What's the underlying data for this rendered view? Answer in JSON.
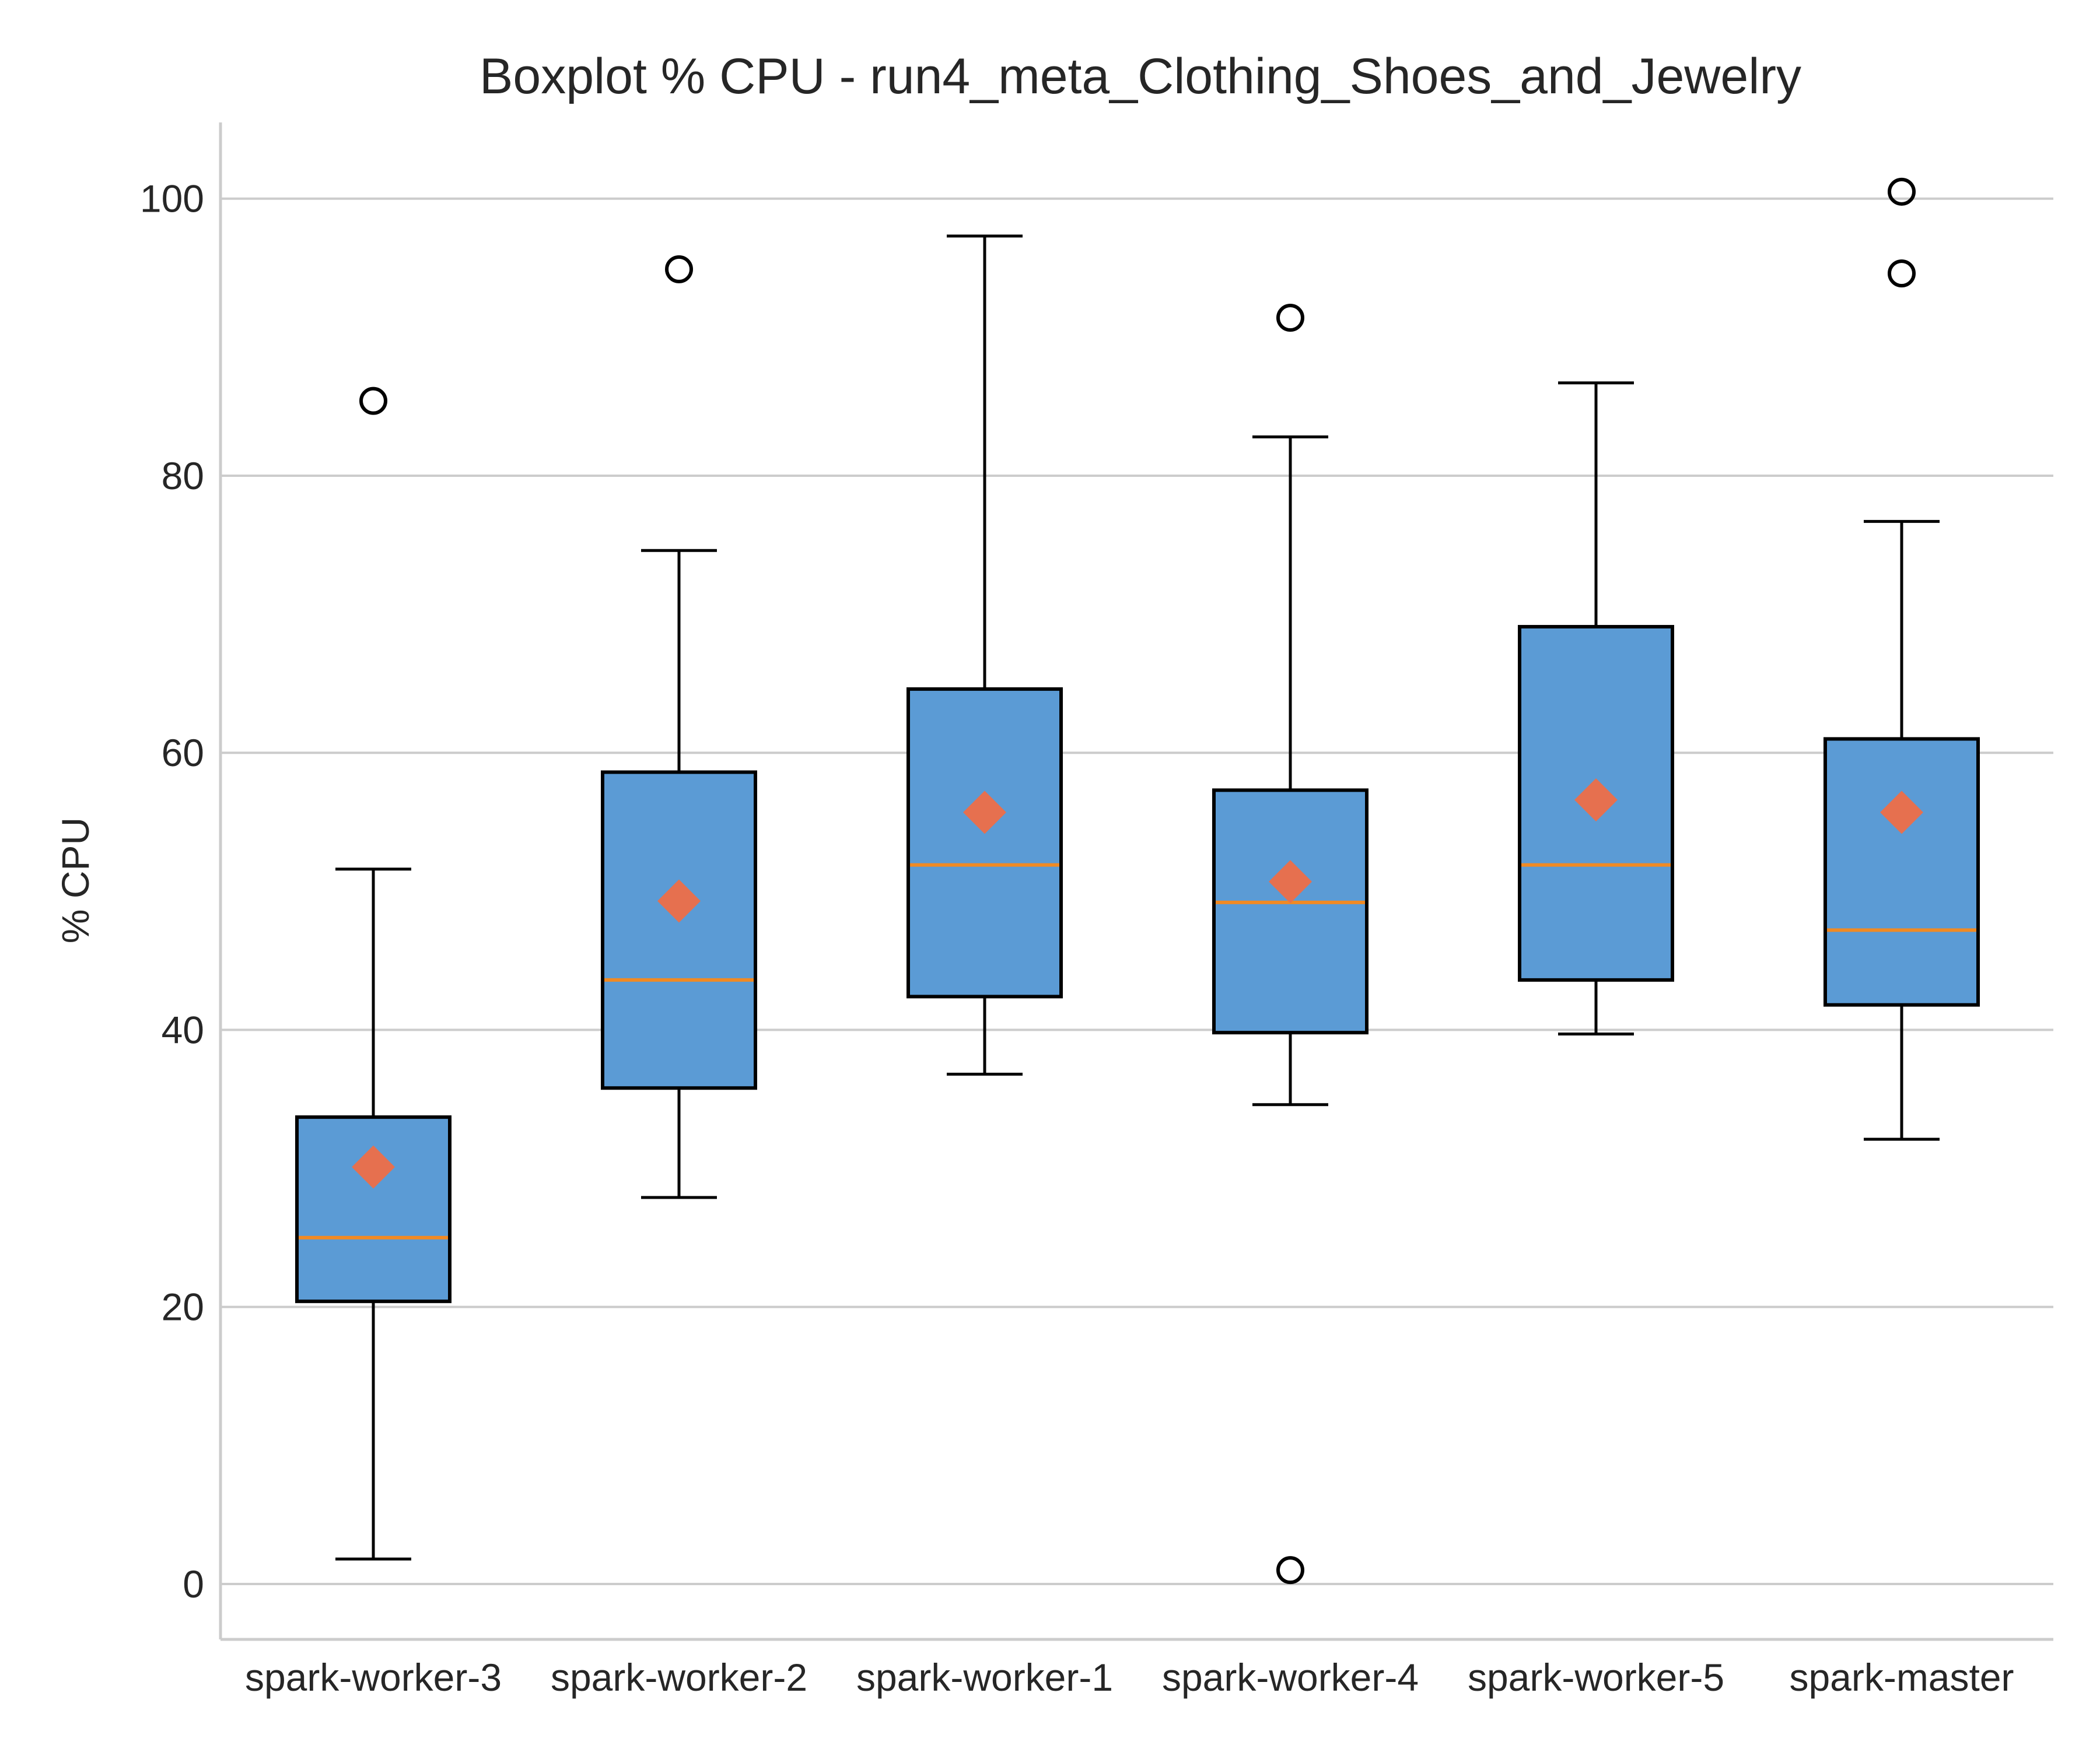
{
  "chart_data": {
    "type": "boxplot",
    "title": "Boxplot % CPU - run4_meta_Clothing_Shoes_and_Jewelry",
    "xlabel": "",
    "ylabel": "% CPU",
    "ylim": [
      -4,
      105.5
    ],
    "yticks": [
      0,
      20,
      40,
      60,
      80,
      100
    ],
    "grid": "horizontal",
    "categories": [
      "spark-worker-3",
      "spark-worker-2",
      "spark-worker-1",
      "spark-worker-4",
      "spark-worker-5",
      "spark-master"
    ],
    "boxes": [
      {
        "whisker_low": 1.8,
        "q1": 20.4,
        "median": 25.0,
        "q3": 33.7,
        "whisker_high": 51.6,
        "mean": 30.1,
        "outliers": [
          85.4
        ]
      },
      {
        "whisker_low": 27.9,
        "q1": 35.8,
        "median": 43.6,
        "q3": 58.6,
        "whisker_high": 74.6,
        "mean": 49.3,
        "outliers": [
          94.9
        ]
      },
      {
        "whisker_low": 36.8,
        "q1": 42.4,
        "median": 51.9,
        "q3": 64.6,
        "whisker_high": 97.3,
        "mean": 55.7,
        "outliers": []
      },
      {
        "whisker_low": 34.6,
        "q1": 39.8,
        "median": 49.2,
        "q3": 57.3,
        "whisker_high": 82.8,
        "mean": 50.7,
        "outliers": [
          91.4,
          1.0
        ]
      },
      {
        "whisker_low": 39.7,
        "q1": 43.6,
        "median": 51.9,
        "q3": 69.1,
        "whisker_high": 86.7,
        "mean": 56.6,
        "outliers": []
      },
      {
        "whisker_low": 32.1,
        "q1": 41.8,
        "median": 47.2,
        "q3": 61.0,
        "whisker_high": 76.7,
        "mean": 55.7,
        "outliers": [
          100.5,
          94.6
        ]
      }
    ],
    "colors": {
      "box_fill": "#5b9bd5",
      "box_edge": "#000000",
      "median": "#f08a24",
      "mean_marker": "#e6704f",
      "grid": "#cccccc",
      "axis": "#cccccc"
    }
  }
}
